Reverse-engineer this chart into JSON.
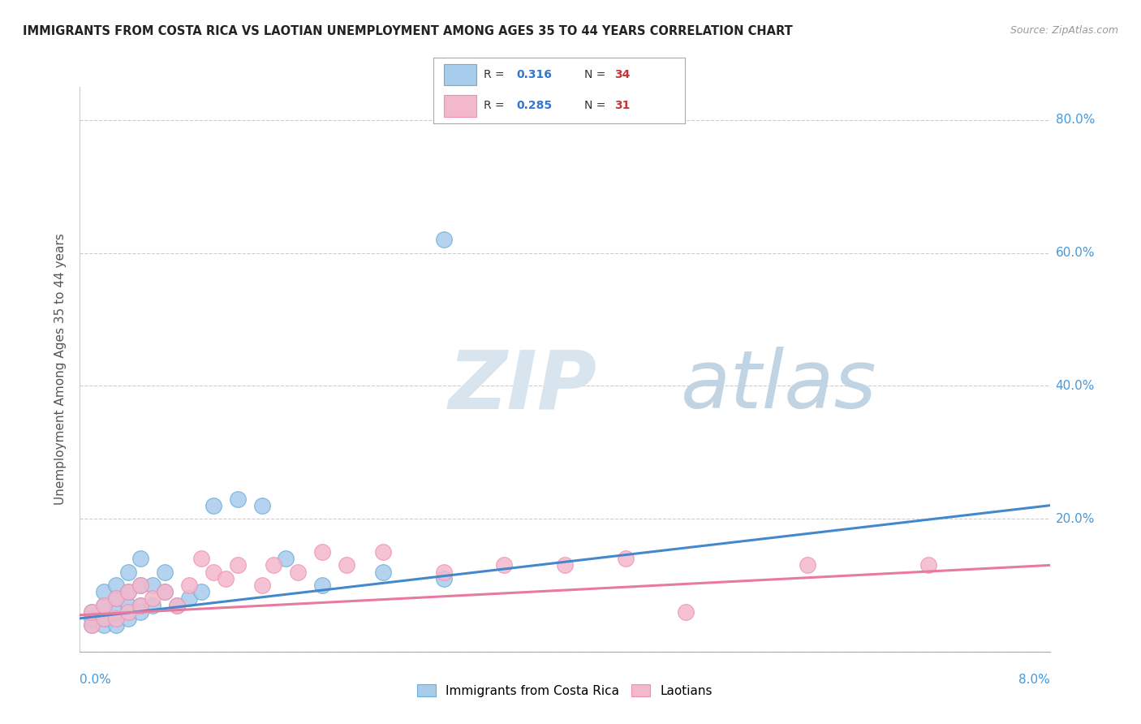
{
  "title": "IMMIGRANTS FROM COSTA RICA VS LAOTIAN UNEMPLOYMENT AMONG AGES 35 TO 44 YEARS CORRELATION CHART",
  "source": "Source: ZipAtlas.com",
  "ylabel": "Unemployment Among Ages 35 to 44 years",
  "xlim": [
    0.0,
    0.08
  ],
  "ylim": [
    0.0,
    0.85
  ],
  "legend1_R": "0.316",
  "legend1_N": "34",
  "legend2_R": "0.285",
  "legend2_N": "31",
  "yticks": [
    0.0,
    0.2,
    0.4,
    0.6,
    0.8
  ],
  "ytick_labels": [
    "",
    "20.0%",
    "40.0%",
    "60.0%",
    "80.0%"
  ],
  "blue_color": "#a8ccec",
  "pink_color": "#f4b8cc",
  "blue_edge_color": "#6aaed6",
  "pink_edge_color": "#f090b0",
  "blue_line_color": "#4488cc",
  "pink_line_color": "#e87aa0",
  "watermark_zip": "ZIP",
  "watermark_atlas": "atlas",
  "watermark_color_zip": "#d0dde8",
  "watermark_color_atlas": "#b8ccdd",
  "blue_scatter_x": [
    0.001,
    0.001,
    0.001,
    0.002,
    0.002,
    0.002,
    0.002,
    0.003,
    0.003,
    0.003,
    0.003,
    0.004,
    0.004,
    0.004,
    0.004,
    0.005,
    0.005,
    0.005,
    0.005,
    0.006,
    0.006,
    0.007,
    0.007,
    0.008,
    0.009,
    0.01,
    0.011,
    0.013,
    0.015,
    0.017,
    0.02,
    0.025,
    0.03,
    0.03
  ],
  "blue_scatter_y": [
    0.04,
    0.05,
    0.06,
    0.04,
    0.05,
    0.07,
    0.09,
    0.04,
    0.06,
    0.08,
    0.1,
    0.05,
    0.07,
    0.09,
    0.12,
    0.06,
    0.07,
    0.1,
    0.14,
    0.07,
    0.1,
    0.09,
    0.12,
    0.07,
    0.08,
    0.09,
    0.22,
    0.23,
    0.22,
    0.14,
    0.1,
    0.12,
    0.11,
    0.62
  ],
  "pink_scatter_x": [
    0.001,
    0.001,
    0.002,
    0.002,
    0.003,
    0.003,
    0.004,
    0.004,
    0.005,
    0.005,
    0.006,
    0.007,
    0.008,
    0.009,
    0.01,
    0.011,
    0.012,
    0.013,
    0.015,
    0.016,
    0.018,
    0.02,
    0.022,
    0.025,
    0.03,
    0.035,
    0.04,
    0.045,
    0.05,
    0.06,
    0.07
  ],
  "pink_scatter_y": [
    0.04,
    0.06,
    0.05,
    0.07,
    0.05,
    0.08,
    0.06,
    0.09,
    0.07,
    0.1,
    0.08,
    0.09,
    0.07,
    0.1,
    0.14,
    0.12,
    0.11,
    0.13,
    0.1,
    0.13,
    0.12,
    0.15,
    0.13,
    0.15,
    0.12,
    0.13,
    0.13,
    0.14,
    0.06,
    0.13,
    0.13
  ],
  "blue_trend_x0": 0.0,
  "blue_trend_y0": 0.05,
  "blue_trend_x1": 0.08,
  "blue_trend_y1": 0.22,
  "pink_trend_x0": 0.0,
  "pink_trend_y0": 0.055,
  "pink_trend_x1": 0.08,
  "pink_trend_y1": 0.13
}
